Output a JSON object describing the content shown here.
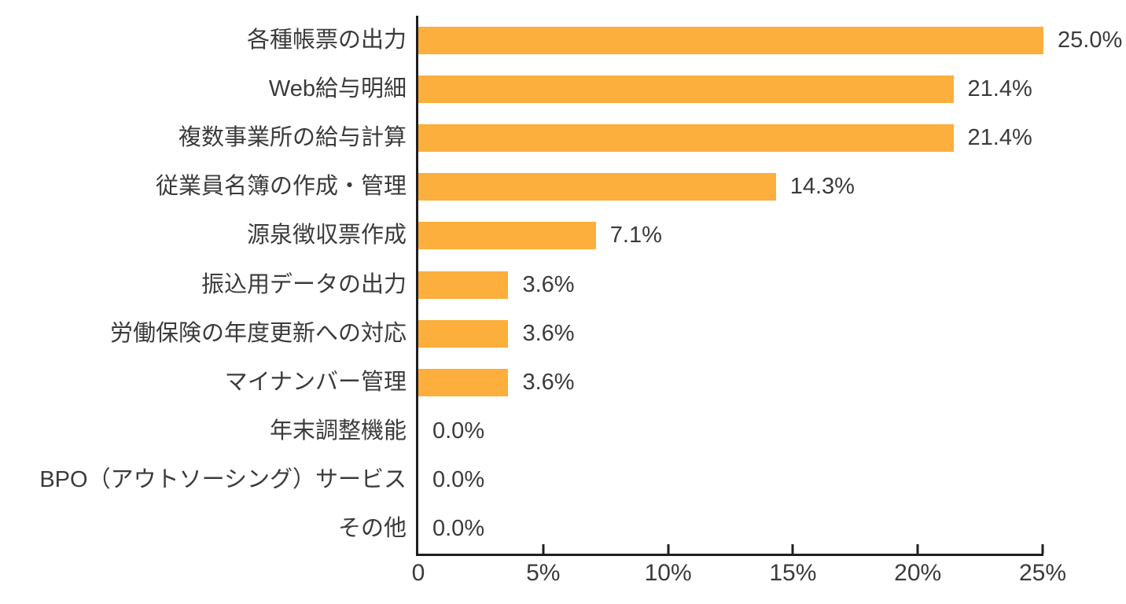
{
  "chart_data": {
    "type": "bar",
    "orientation": "horizontal",
    "title": "",
    "xlabel": "",
    "ylabel": "",
    "categories": [
      "各種帳票の出力",
      "Web給与明細",
      "複数事業所の給与計算",
      "従業員名簿の作成・管理",
      "源泉徴収票作成",
      "振込用データの出力",
      "労働保険の年度更新への対応",
      "マイナンバー管理",
      "年末調整機能",
      "BPO（アウトソーシング）サービス",
      "その他"
    ],
    "values": [
      25.0,
      21.4,
      21.4,
      14.3,
      7.1,
      3.6,
      3.6,
      3.6,
      0.0,
      0.0,
      0.0
    ],
    "value_labels": [
      "25.0%",
      "21.4%",
      "21.4%",
      "14.3%",
      "7.1%",
      "3.6%",
      "3.6%",
      "3.6%",
      "0.0%",
      "0.0%",
      "0.0%"
    ],
    "x_tick_values": [
      0,
      5,
      10,
      15,
      20,
      25
    ],
    "x_tick_labels": [
      "0",
      "5%",
      "10%",
      "15%",
      "20%",
      "25%"
    ],
    "xlim": [
      0,
      25
    ],
    "grid": false,
    "legend_position": "none",
    "bar_color": "#fcaf3c",
    "axis_color": "#1f1f1f",
    "text_color": "#3b3b3b"
  }
}
